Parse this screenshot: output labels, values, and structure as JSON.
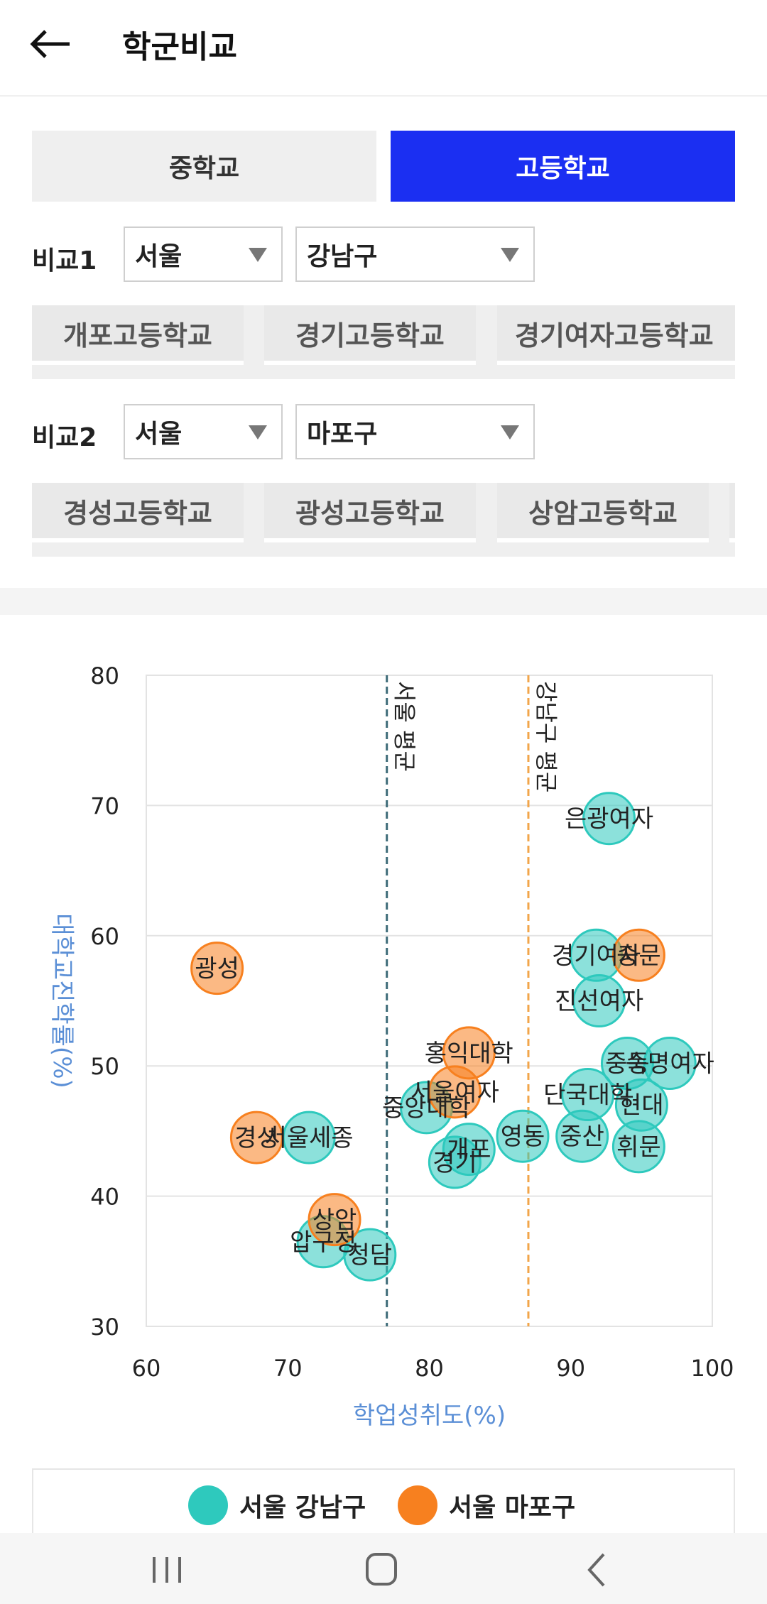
{
  "header": {
    "title": "학군비교"
  },
  "segments": {
    "middle": "중학교",
    "high": "고등학교"
  },
  "compare1": {
    "label": "비교1",
    "region": "서울",
    "district": "강남구",
    "schools": [
      "개포고등학교",
      "경기고등학교",
      "경기여자고등학교"
    ]
  },
  "compare2": {
    "label": "비교2",
    "region": "서울",
    "district": "마포구",
    "schools": [
      "경성고등학교",
      "광성고등학교",
      "상암고등학교"
    ]
  },
  "colors": {
    "gangnam": "#2ec9bd",
    "mapo": "#f7801f",
    "accent": "#1b2ff2",
    "axis_label": "#5b8fd6"
  },
  "chart_data": {
    "type": "scatter",
    "xlabel": "학업성취도(%)",
    "ylabel": "대학교진학률(%)",
    "xlim": [
      60,
      100
    ],
    "ylim": [
      30,
      80
    ],
    "xticks": [
      60,
      70,
      80,
      90,
      100
    ],
    "yticks": [
      30,
      40,
      50,
      60,
      70,
      80
    ],
    "grid": true,
    "reference_lines": [
      {
        "label": "서울 평균",
        "x": 77,
        "color": "#3d6b78"
      },
      {
        "label": "강남구 평균",
        "x": 87,
        "color": "#f2a54a"
      }
    ],
    "series": [
      {
        "name": "서울 강남구",
        "color": "#2ec9bd",
        "points": [
          {
            "label": "은광여자",
            "x": 92.7,
            "y": 69.0
          },
          {
            "label": "경기여자",
            "x": 91.8,
            "y": 58.5
          },
          {
            "label": "진선여자",
            "x": 92.0,
            "y": 55.0
          },
          {
            "label": "중동",
            "x": 94.0,
            "y": 50.2
          },
          {
            "label": "숙명여자",
            "x": 97.0,
            "y": 50.2
          },
          {
            "label": "단국대학",
            "x": 91.2,
            "y": 47.8
          },
          {
            "label": "현대",
            "x": 95.0,
            "y": 47.0
          },
          {
            "label": "중산",
            "x": 90.8,
            "y": 44.6
          },
          {
            "label": "휘문",
            "x": 94.8,
            "y": 43.8
          },
          {
            "label": "영동",
            "x": 86.6,
            "y": 44.6
          },
          {
            "label": "개포",
            "x": 82.8,
            "y": 43.6
          },
          {
            "label": "경기",
            "x": 81.8,
            "y": 42.6
          },
          {
            "label": "중앙대학",
            "x": 79.8,
            "y": 46.8
          },
          {
            "label": "서울세종",
            "x": 71.5,
            "y": 44.5
          },
          {
            "label": "압구정",
            "x": 72.5,
            "y": 36.5
          },
          {
            "label": "청담",
            "x": 75.8,
            "y": 35.5
          }
        ]
      },
      {
        "name": "서울 마포구",
        "color": "#f7801f",
        "points": [
          {
            "label": "광성",
            "x": 65.0,
            "y": 57.5
          },
          {
            "label": "경성",
            "x": 67.8,
            "y": 44.5
          },
          {
            "label": "숭문",
            "x": 94.8,
            "y": 58.5
          },
          {
            "label": "홍익대학",
            "x": 82.8,
            "y": 51.0
          },
          {
            "label": "서울여자",
            "x": 81.8,
            "y": 48.0
          },
          {
            "label": "상암",
            "x": 73.3,
            "y": 38.2
          }
        ]
      }
    ]
  },
  "legend": {
    "gangnam": "서울 강남구",
    "mapo": "서울 마포구"
  }
}
